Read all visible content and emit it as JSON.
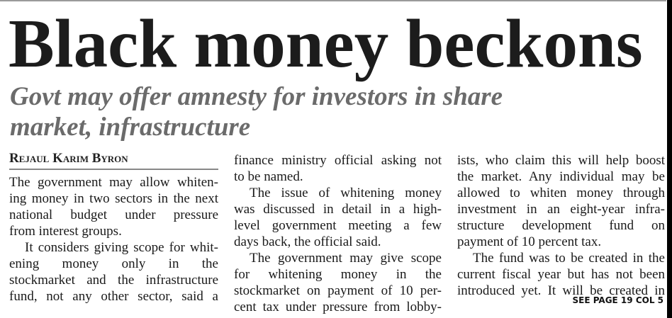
{
  "headline": "Black money beckons",
  "subheadline": "Govt may offer amnesty for investors in share market, infrastructure",
  "byline": "Rejaul Karim Byron",
  "columns": [
    {
      "lines": [
        {
          "t": "The government may allow whiten-",
          "s": ""
        },
        {
          "t": "ing money in two sectors in the next",
          "s": ""
        },
        {
          "t": "national budget under pressure",
          "s": ""
        },
        {
          "t": "from interest groups.",
          "s": "last"
        },
        {
          "t": "It considers giving scope for whit-",
          "s": "ind"
        },
        {
          "t": "ening money only in the",
          "s": ""
        },
        {
          "t": "stockmarket and the infrastructure",
          "s": ""
        },
        {
          "t": "fund, not any other sector, said a",
          "s": ""
        }
      ]
    },
    {
      "lines": [
        {
          "t": "finance ministry official asking not",
          "s": ""
        },
        {
          "t": "to be named.",
          "s": "last"
        },
        {
          "t": "The issue of whitening money",
          "s": "ind"
        },
        {
          "t": "was discussed in detail in a high-",
          "s": ""
        },
        {
          "t": "level government meeting a few",
          "s": ""
        },
        {
          "t": "days back, the official said.",
          "s": "last"
        },
        {
          "t": "The government may give scope",
          "s": "ind"
        },
        {
          "t": "for whitening money in the",
          "s": ""
        },
        {
          "t": "stockmarket on payment of 10 per-",
          "s": ""
        },
        {
          "t": "cent tax under pressure from lobby-",
          "s": ""
        }
      ]
    },
    {
      "lines": [
        {
          "t": "ists, who claim this will help boost",
          "s": ""
        },
        {
          "t": "the market. Any individual may be",
          "s": ""
        },
        {
          "t": "allowed to whiten money through",
          "s": ""
        },
        {
          "t": "investment in an eight-year infra-",
          "s": ""
        },
        {
          "t": "structure development fund on",
          "s": ""
        },
        {
          "t": "payment of 10 percent tax.",
          "s": "last"
        },
        {
          "t": "The fund was to be created in the",
          "s": "ind"
        },
        {
          "t": "current fiscal year but has not been",
          "s": ""
        },
        {
          "t": "introduced yet. It will be created in",
          "s": ""
        }
      ]
    }
  ],
  "continuation": "SEE PAGE 19 COL 5"
}
